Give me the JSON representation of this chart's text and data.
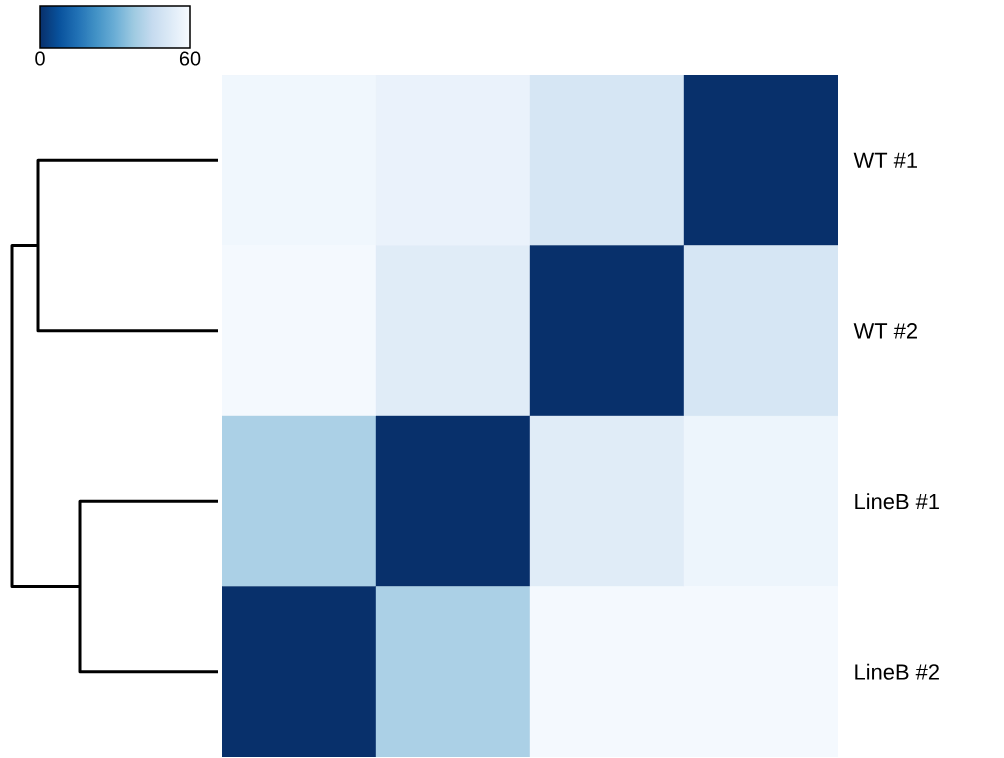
{
  "chart_data": {
    "type": "heatmap",
    "categories": [
      null,
      null,
      null,
      null
    ],
    "y_categories": [
      "WT #1",
      "WT #2",
      "LineB #1",
      "LineB #2"
    ],
    "cells": [
      [
        58,
        56,
        50,
        0
      ],
      [
        59,
        53,
        0,
        50
      ],
      [
        40,
        0,
        53,
        57
      ],
      [
        0,
        40,
        59,
        59
      ]
    ],
    "clim": [
      0,
      60
    ],
    "cticks": [
      0,
      60
    ]
  }
}
